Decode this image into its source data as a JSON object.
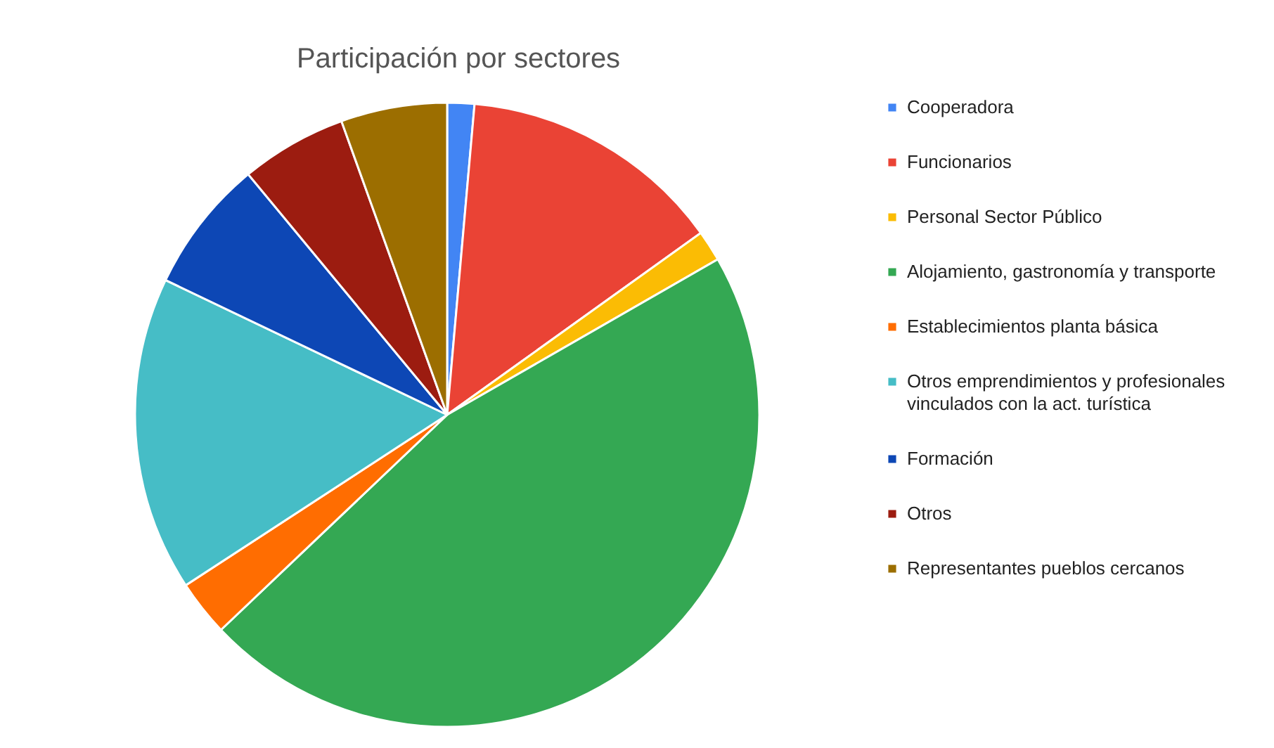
{
  "chart_data": {
    "type": "pie",
    "title": "Participación por sectores",
    "categories": [
      "Cooperadora",
      "Funcionarios",
      "Personal Sector Público",
      "Alojamiento, gastronomía y transporte",
      "Establecimientos planta básica",
      "Otros emprendimientos y profesionales vinculados con la act. turística",
      "Formación",
      "Otros",
      "Representantes pueblos cercanos"
    ],
    "values": [
      1.4,
      13.7,
      1.6,
      46.2,
      2.9,
      16.3,
      6.9,
      5.5,
      5.5
    ],
    "colors": [
      "#4285f4",
      "#ea4335",
      "#fbbc04",
      "#34a853",
      "#ff6d01",
      "#46bdc6",
      "#0d47b5",
      "#9c1c10",
      "#9c6e00"
    ],
    "legend": "right"
  }
}
